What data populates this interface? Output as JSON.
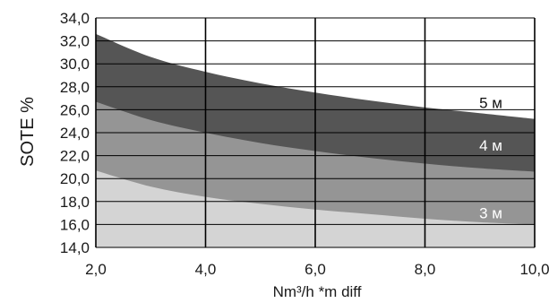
{
  "chart_data": {
    "type": "area",
    "title": "",
    "xlabel": "Nm³/h *m diff",
    "ylabel": "SOTE %",
    "xlim": [
      2.0,
      10.0
    ],
    "ylim": [
      14.0,
      34.0
    ],
    "x_ticks": [
      2.0,
      4.0,
      6.0,
      8.0,
      10.0
    ],
    "x_tick_labels": [
      "2,0",
      "4,0",
      "6,0",
      "8,0",
      "10,0"
    ],
    "y_ticks": [
      14.0,
      16.0,
      18.0,
      20.0,
      22.0,
      24.0,
      26.0,
      28.0,
      30.0,
      32.0,
      34.0
    ],
    "y_tick_labels": [
      "14,0",
      "16,0",
      "18,0",
      "20,0",
      "22,0",
      "24,0",
      "26,0",
      "28,0",
      "30,0",
      "32,0",
      "34,0"
    ],
    "grid": "vertical lines at each x tick, horizontal lines at each y tick",
    "x": [
      2.0,
      3.0,
      4.0,
      5.0,
      6.0,
      7.0,
      8.0,
      9.0,
      10.0
    ],
    "series": [
      {
        "name": "3 м",
        "label_x": 9.2,
        "label_y": 17.0,
        "values": [
          20.7,
          19.3,
          18.4,
          17.8,
          17.3,
          16.9,
          16.5,
          16.2,
          16.0
        ]
      },
      {
        "name": "4 м",
        "label_x": 9.2,
        "label_y": 22.9,
        "values": [
          26.7,
          25.1,
          24.0,
          23.1,
          22.4,
          21.8,
          21.3,
          20.9,
          20.6
        ]
      },
      {
        "name": "5 м",
        "label_x": 9.2,
        "label_y": 26.6,
        "values": [
          32.6,
          30.6,
          29.3,
          28.3,
          27.5,
          26.8,
          26.2,
          25.7,
          25.2
        ]
      }
    ],
    "colors": {
      "band_3m": "#d4d4d4",
      "band_4m": "#959595",
      "band_5m": "#555555",
      "grid": "#000000",
      "label_3m": "#ffffff",
      "label_4m": "#ffffff",
      "label_5m": "#111111"
    }
  }
}
